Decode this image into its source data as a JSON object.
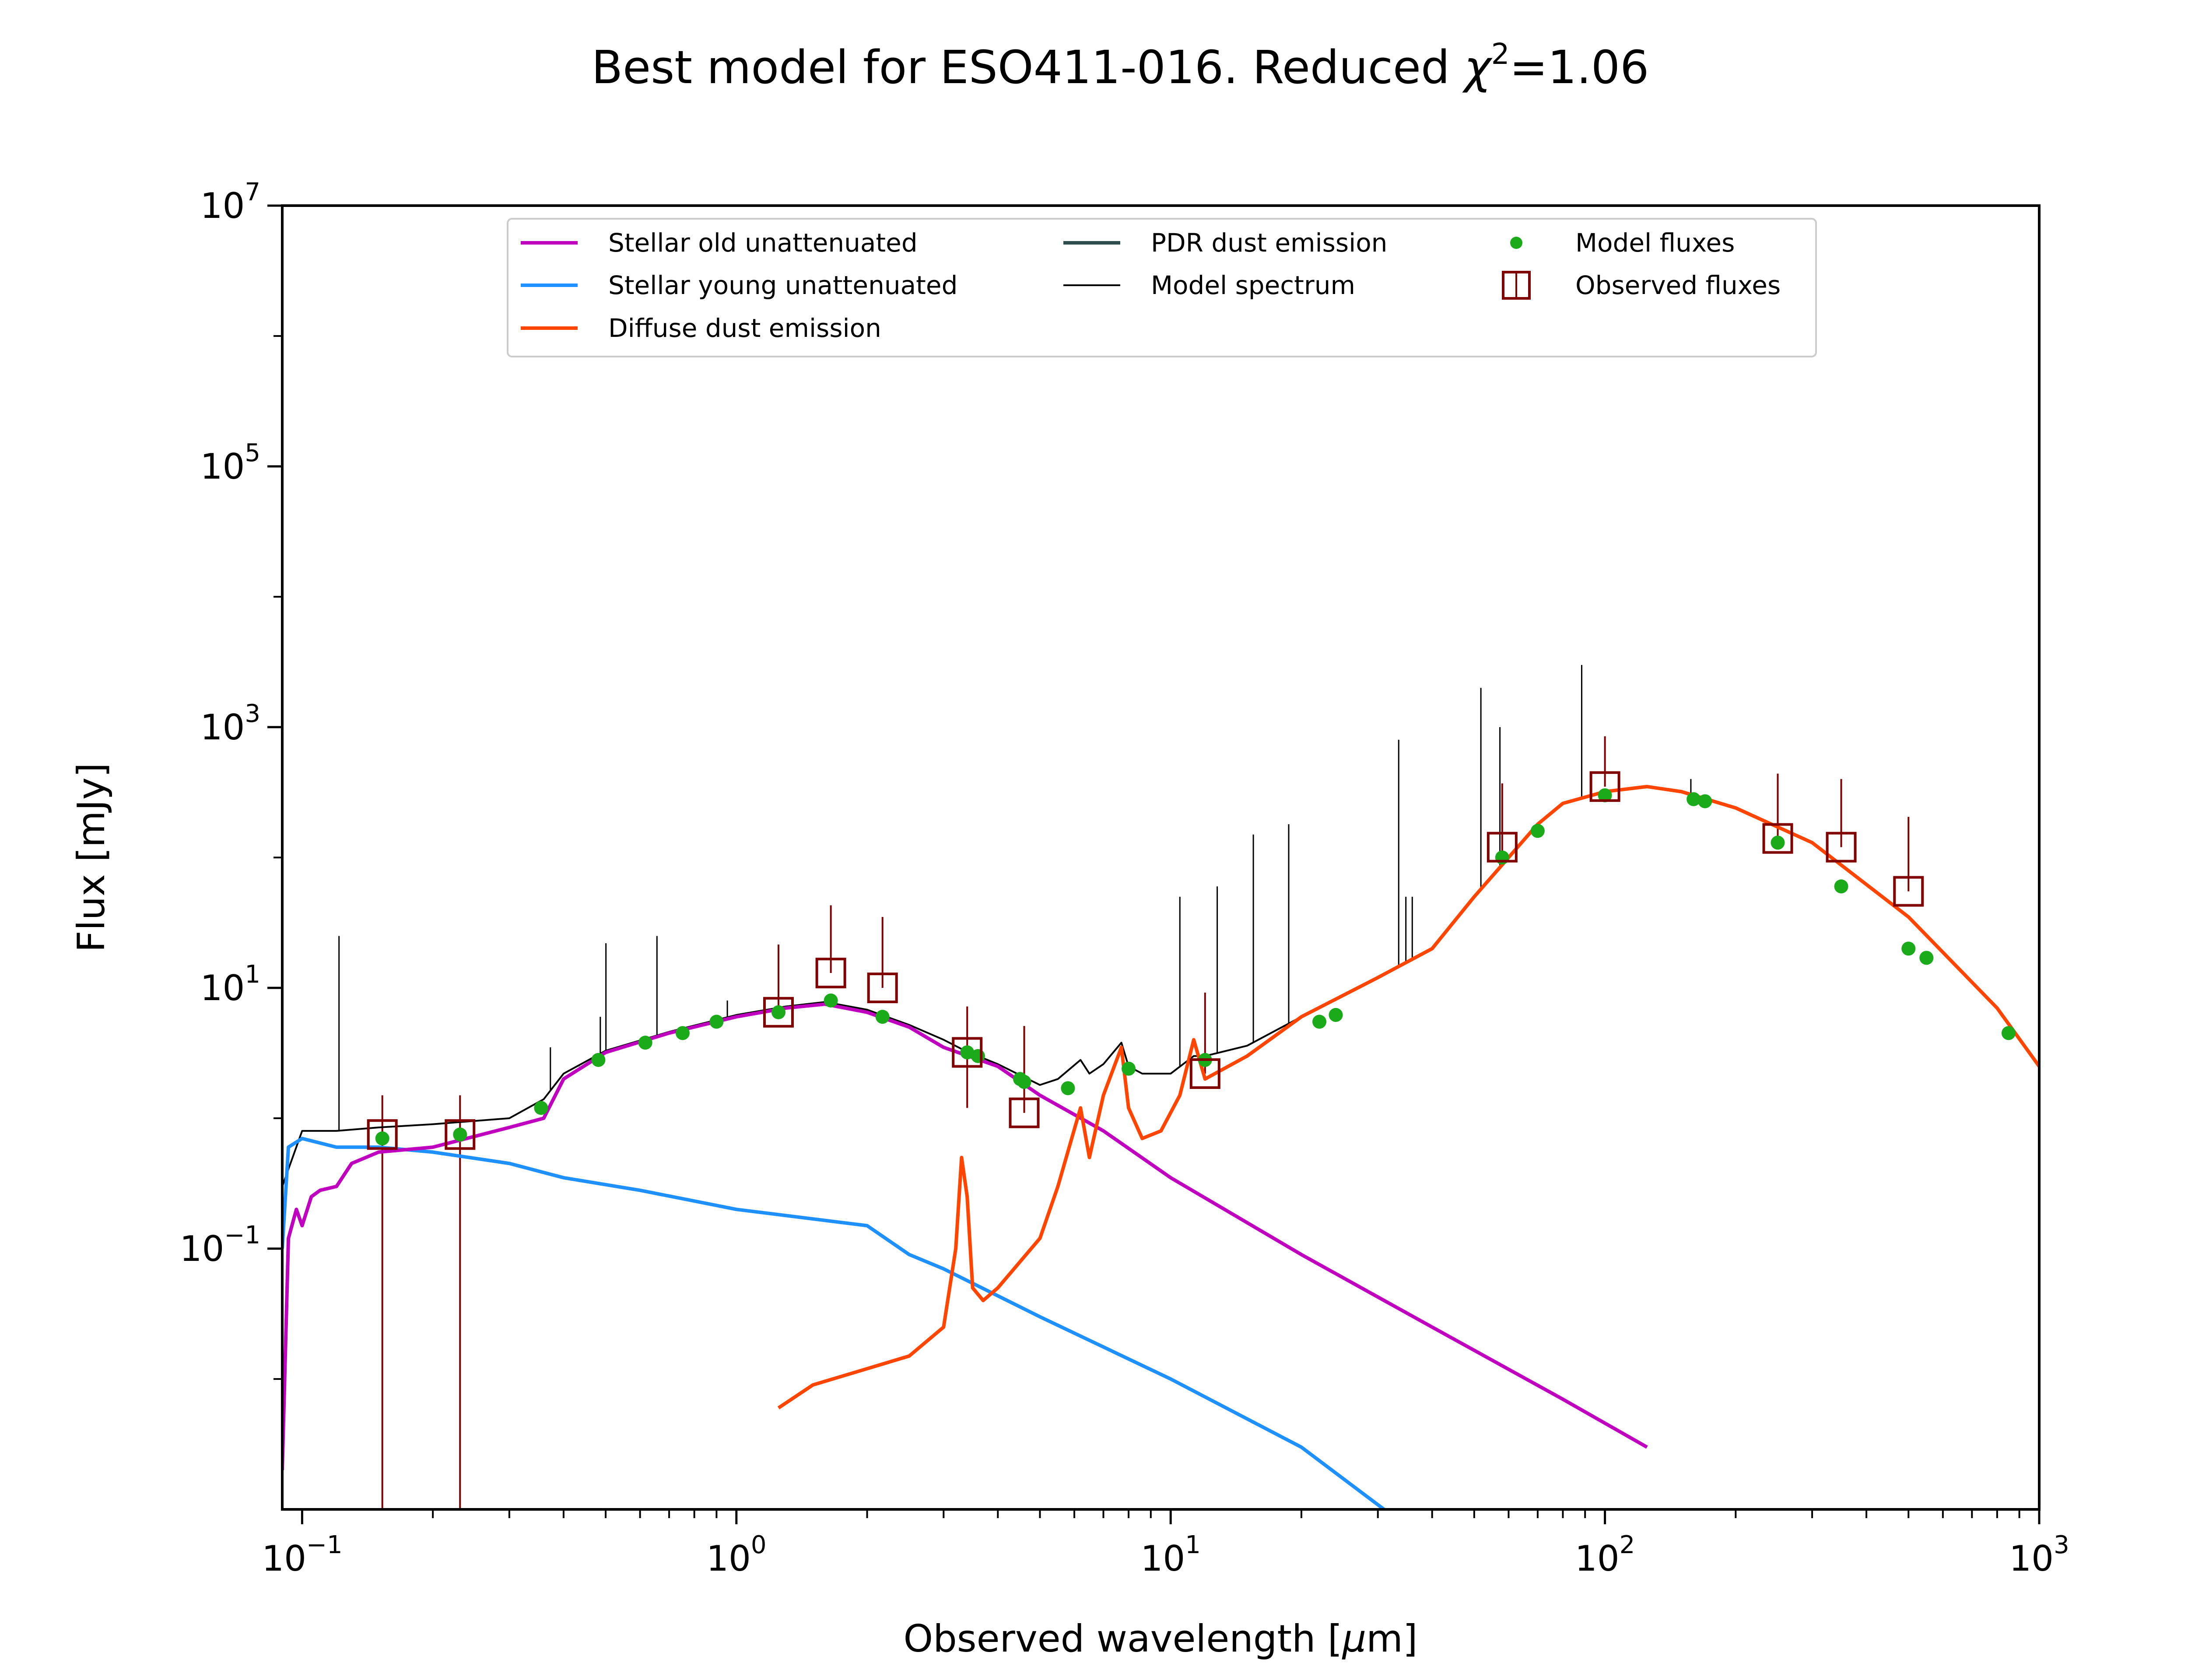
{
  "chart_data": {
    "type": "line",
    "title_main": "Best model for ESO411-016. Reduced ",
    "title_chi": "χ",
    "title_sup": "2",
    "title_value": "=1.06",
    "xlabel_pre": "Observed wavelength [",
    "xlabel_mu": "μ",
    "xlabel_post": "m]",
    "ylabel": "Flux [mJy]",
    "xscale": "log",
    "yscale": "log",
    "xlim": [
      0.09,
      1000
    ],
    "ylim": [
      0.001,
      10000000
    ],
    "x_ticks": [
      {
        "base": "10",
        "exp": "−1",
        "value": 0.1
      },
      {
        "base": "10",
        "exp": "0",
        "value": 1
      },
      {
        "base": "10",
        "exp": "1",
        "value": 10
      },
      {
        "base": "10",
        "exp": "2",
        "value": 100
      },
      {
        "base": "10",
        "exp": "3",
        "value": 1000
      }
    ],
    "y_ticks": [
      {
        "base": "10",
        "exp": "−1",
        "value": 0.1
      },
      {
        "base": "10",
        "exp": "1",
        "value": 10
      },
      {
        "base": "10",
        "exp": "3",
        "value": 1000
      },
      {
        "base": "10",
        "exp": "5",
        "value": 100000
      },
      {
        "base": "10",
        "exp": "7",
        "value": 10000000
      }
    ],
    "legend_position": "upper-center",
    "legend": [
      {
        "label": "Stellar old unattenuated",
        "color": "#bf00bf",
        "kind": "line"
      },
      {
        "label": "Stellar young unattenuated",
        "color": "#1e90ff",
        "kind": "line"
      },
      {
        "label": "Diffuse dust emission",
        "color": "#ff4500",
        "kind": "line"
      },
      {
        "label": "PDR dust emission",
        "color": "#2f4f4f",
        "kind": "line"
      },
      {
        "label": "Model spectrum",
        "color": "#000000",
        "kind": "thin-line"
      },
      {
        "label": "Model fluxes",
        "color": "#1aaa1a",
        "kind": "dot"
      },
      {
        "label": "Observed fluxes",
        "color": "#800000",
        "kind": "square"
      }
    ],
    "series": [
      {
        "name": "Stellar old unattenuated",
        "color": "#bf00bf",
        "x": [
          0.09,
          0.093,
          0.097,
          0.1,
          0.105,
          0.11,
          0.12,
          0.13,
          0.15,
          0.2,
          0.3,
          0.36,
          0.4,
          0.5,
          0.7,
          1.0,
          1.3,
          1.6,
          2.0,
          2.5,
          3.0,
          4.0,
          5.0,
          7.0,
          10,
          20,
          40,
          80,
          125
        ],
        "y": [
          0.002,
          0.12,
          0.2,
          0.15,
          0.25,
          0.28,
          0.3,
          0.45,
          0.55,
          0.6,
          0.85,
          1.0,
          2.0,
          3.2,
          4.5,
          6.0,
          7.0,
          7.5,
          6.5,
          5.0,
          3.5,
          2.5,
          1.5,
          0.8,
          0.35,
          0.09,
          0.025,
          0.007,
          0.003
        ]
      },
      {
        "name": "Stellar young unattenuated",
        "color": "#1e90ff",
        "x": [
          0.09,
          0.093,
          0.1,
          0.12,
          0.15,
          0.2,
          0.3,
          0.4,
          0.6,
          1.0,
          2.0,
          2.5,
          3.0,
          5.0,
          10,
          20,
          31
        ],
        "y": [
          0.1,
          0.6,
          0.7,
          0.6,
          0.6,
          0.55,
          0.45,
          0.35,
          0.28,
          0.2,
          0.15,
          0.09,
          0.07,
          0.03,
          0.01,
          0.003,
          0.001
        ]
      },
      {
        "name": "Diffuse dust emission",
        "color": "#ff4500",
        "x": [
          1.25,
          1.5,
          2.0,
          2.5,
          3.0,
          3.2,
          3.3,
          3.4,
          3.5,
          3.7,
          4.0,
          5.0,
          5.5,
          6.2,
          6.5,
          7.0,
          7.7,
          8.0,
          8.6,
          9.5,
          10.5,
          11.3,
          12,
          15,
          20,
          30,
          40,
          50,
          60,
          70,
          80,
          100,
          125,
          150,
          200,
          300,
          500,
          800,
          1000
        ],
        "y": [
          0.006,
          0.009,
          0.012,
          0.015,
          0.025,
          0.1,
          0.5,
          0.25,
          0.05,
          0.04,
          0.05,
          0.12,
          0.3,
          1.2,
          0.5,
          1.5,
          3.5,
          1.2,
          0.7,
          0.8,
          1.5,
          4.0,
          2.0,
          3.0,
          6.0,
          12,
          20,
          50,
          100,
          180,
          260,
          320,
          350,
          320,
          240,
          130,
          35,
          7,
          2.5
        ]
      },
      {
        "name": "Model spectrum",
        "color": "#000000",
        "x": [
          0.09,
          0.1,
          0.12,
          0.15,
          0.2,
          0.3,
          0.36,
          0.4,
          0.5,
          0.7,
          1.0,
          1.3,
          1.6,
          2.0,
          2.5,
          3.0,
          3.3,
          3.6,
          4.0,
          5.0,
          5.5,
          6.2,
          6.5,
          7.0,
          7.7,
          8.0,
          8.6,
          10,
          11.3,
          12,
          15,
          20,
          30,
          40,
          50,
          60,
          70,
          80,
          100,
          125,
          150,
          200,
          300,
          500,
          800,
          1000
        ],
        "y": [
          0.3,
          0.8,
          0.8,
          0.85,
          0.9,
          1.0,
          1.4,
          2.2,
          3.3,
          4.6,
          6.2,
          7.2,
          7.8,
          6.8,
          5.2,
          4.0,
          3.4,
          3.0,
          2.6,
          1.8,
          2.0,
          2.8,
          2.2,
          2.6,
          3.8,
          2.5,
          2.2,
          2.2,
          3.0,
          3.0,
          3.6,
          6.0,
          12,
          20,
          50,
          100,
          180,
          260,
          320,
          350,
          320,
          240,
          130,
          35,
          7,
          2.5
        ]
      }
    ],
    "emission_lines": [
      {
        "x": 0.1216,
        "y_top": 25
      },
      {
        "x": 0.373,
        "y_top": 3.5
      },
      {
        "x": 0.434,
        "y_top": 2.5
      },
      {
        "x": 0.486,
        "y_top": 6
      },
      {
        "x": 0.5007,
        "y_top": 22
      },
      {
        "x": 0.6563,
        "y_top": 25
      },
      {
        "x": 0.9531,
        "y_top": 8
      },
      {
        "x": 10.5,
        "y_top": 50
      },
      {
        "x": 12.8,
        "y_top": 60
      },
      {
        "x": 15.5,
        "y_top": 150
      },
      {
        "x": 18.7,
        "y_top": 180
      },
      {
        "x": 33.5,
        "y_top": 800
      },
      {
        "x": 34.8,
        "y_top": 50
      },
      {
        "x": 36.0,
        "y_top": 50
      },
      {
        "x": 51.8,
        "y_top": 2000
      },
      {
        "x": 57.3,
        "y_top": 1000
      },
      {
        "x": 88.4,
        "y_top": 3000
      },
      {
        "x": 157.7,
        "y_top": 400
      }
    ],
    "model_fluxes": {
      "x": [
        0.153,
        0.231,
        0.355,
        0.481,
        0.617,
        0.752,
        0.9,
        1.25,
        1.65,
        2.17,
        3.4,
        3.6,
        4.5,
        4.6,
        5.8,
        8.0,
        12,
        22,
        24,
        58,
        70,
        100,
        160,
        170,
        250,
        350,
        500,
        550,
        850
      ],
      "y": [
        0.7,
        0.75,
        1.2,
        2.8,
        3.8,
        4.5,
        5.5,
        6.5,
        8.0,
        6.0,
        3.2,
        3.0,
        2.0,
        1.9,
        1.7,
        2.4,
        2.8,
        5.5,
        6.2,
        100,
        160,
        300,
        280,
        270,
        130,
        60,
        20,
        17,
        4.5
      ]
    },
    "observed_fluxes": {
      "x": [
        0.153,
        0.231,
        1.25,
        1.65,
        2.17,
        3.4,
        4.6,
        12,
        58,
        100,
        250,
        350,
        500
      ],
      "y": [
        0.75,
        0.75,
        6.5,
        13,
        10,
        3.2,
        1.1,
        2.2,
        120,
        350,
        140,
        120,
        55
      ],
      "err_low": [
        0.75,
        0.75,
        0.001,
        0.001,
        0.001,
        2.0,
        0.001,
        0.001,
        10,
        0.8,
        0.001,
        0.001,
        0.001
      ],
      "err_high": [
        0.75,
        0.75,
        15,
        30,
        25,
        4.0,
        4.0,
        7.0,
        250,
        500,
        300,
        280,
        150
      ]
    }
  }
}
